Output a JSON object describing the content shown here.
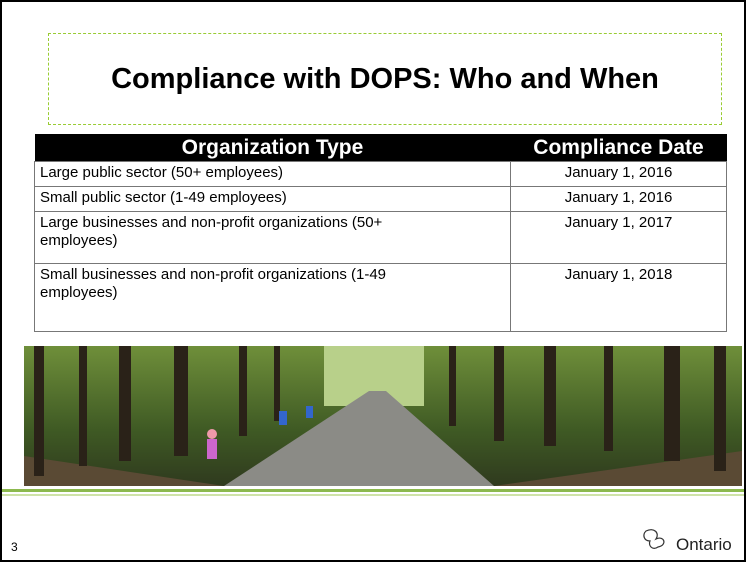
{
  "title": "Compliance with DOPS: Who and When",
  "table": {
    "headers": [
      "Organization Type",
      "Compliance Date"
    ],
    "rows": [
      [
        "Large public sector (50+ employees)",
        "January 1, 2016"
      ],
      [
        "Small public sector (1-49 employees)",
        "January 1, 2016"
      ],
      [
        "Large businesses and non-profit organizations (50+ employees)",
        "January 1, 2017"
      ],
      [
        "Small businesses and non-profit organizations (1-49 employees)",
        "January 1, 2018"
      ]
    ]
  },
  "footer": {
    "page_number": "3",
    "logo_text": "Ontario"
  }
}
